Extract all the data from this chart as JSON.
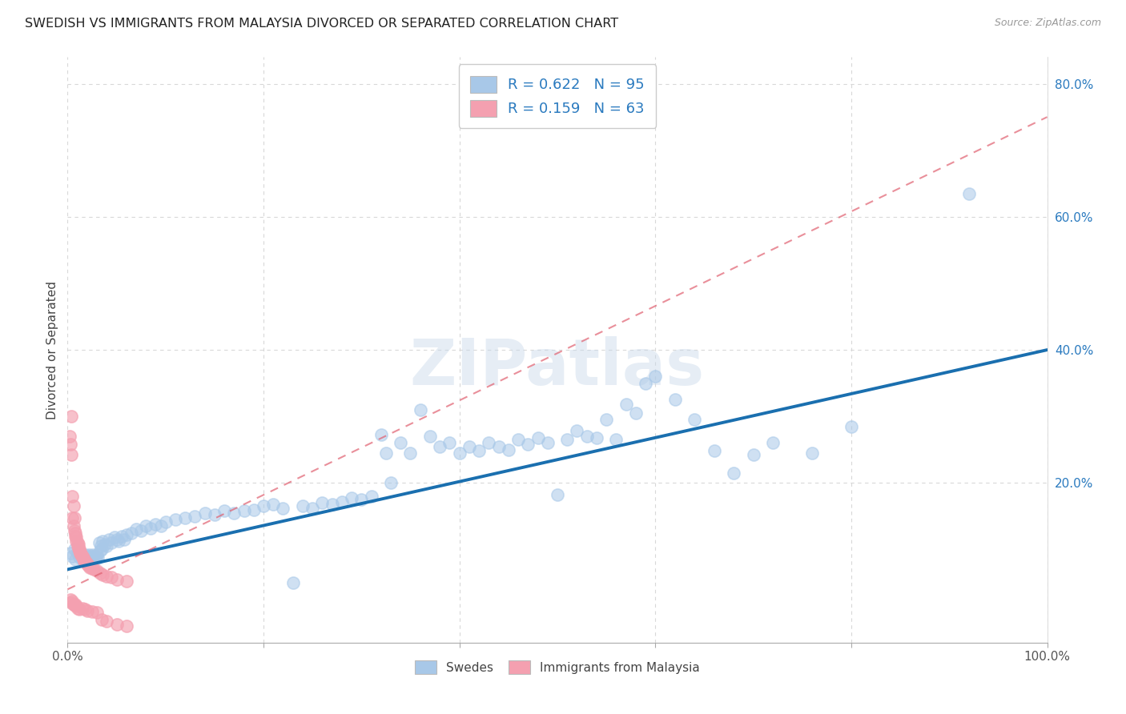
{
  "title": "SWEDISH VS IMMIGRANTS FROM MALAYSIA DIVORCED OR SEPARATED CORRELATION CHART",
  "source": "Source: ZipAtlas.com",
  "ylabel": "Divorced or Separated",
  "xlim": [
    0.0,
    1.0
  ],
  "ylim": [
    -0.04,
    0.84
  ],
  "xticks": [
    0.0,
    0.2,
    0.4,
    0.6,
    0.8,
    1.0
  ],
  "xtick_labels": [
    "0.0%",
    "",
    "",
    "",
    "",
    "100.0%"
  ],
  "ytick_labels": [
    "20.0%",
    "40.0%",
    "60.0%",
    "80.0%"
  ],
  "yticks": [
    0.2,
    0.4,
    0.6,
    0.8
  ],
  "watermark": "ZIPatlas",
  "legend_blue_r": "R = 0.622",
  "legend_blue_n": "N = 95",
  "legend_pink_r": "R = 0.159",
  "legend_pink_n": "N = 63",
  "blue_color": "#a8c8e8",
  "pink_color": "#f4a0b0",
  "line_blue": "#1a6faf",
  "line_pink": "#e06070",
  "tick_label_color": "#2a7abf",
  "blue_scatter": [
    [
      0.003,
      0.095
    ],
    [
      0.005,
      0.09
    ],
    [
      0.007,
      0.1
    ],
    [
      0.008,
      0.085
    ],
    [
      0.01,
      0.095
    ],
    [
      0.012,
      0.088
    ],
    [
      0.013,
      0.092
    ],
    [
      0.015,
      0.085
    ],
    [
      0.016,
      0.09
    ],
    [
      0.017,
      0.088
    ],
    [
      0.018,
      0.092
    ],
    [
      0.019,
      0.086
    ],
    [
      0.02,
      0.09
    ],
    [
      0.021,
      0.088
    ],
    [
      0.022,
      0.092
    ],
    [
      0.023,
      0.087
    ],
    [
      0.024,
      0.09
    ],
    [
      0.025,
      0.088
    ],
    [
      0.026,
      0.092
    ],
    [
      0.027,
      0.087
    ],
    [
      0.028,
      0.09
    ],
    [
      0.029,
      0.088
    ],
    [
      0.03,
      0.092
    ],
    [
      0.031,
      0.087
    ],
    [
      0.032,
      0.11
    ],
    [
      0.033,
      0.098
    ],
    [
      0.034,
      0.105
    ],
    [
      0.035,
      0.1
    ],
    [
      0.036,
      0.112
    ],
    [
      0.038,
      0.108
    ],
    [
      0.04,
      0.105
    ],
    [
      0.042,
      0.115
    ],
    [
      0.045,
      0.11
    ],
    [
      0.048,
      0.118
    ],
    [
      0.05,
      0.115
    ],
    [
      0.052,
      0.112
    ],
    [
      0.055,
      0.12
    ],
    [
      0.058,
      0.115
    ],
    [
      0.06,
      0.122
    ],
    [
      0.065,
      0.125
    ],
    [
      0.07,
      0.13
    ],
    [
      0.075,
      0.128
    ],
    [
      0.08,
      0.135
    ],
    [
      0.085,
      0.132
    ],
    [
      0.09,
      0.138
    ],
    [
      0.095,
      0.135
    ],
    [
      0.1,
      0.142
    ],
    [
      0.11,
      0.145
    ],
    [
      0.12,
      0.148
    ],
    [
      0.13,
      0.15
    ],
    [
      0.14,
      0.155
    ],
    [
      0.15,
      0.152
    ],
    [
      0.16,
      0.158
    ],
    [
      0.17,
      0.155
    ],
    [
      0.18,
      0.158
    ],
    [
      0.19,
      0.16
    ],
    [
      0.2,
      0.165
    ],
    [
      0.21,
      0.168
    ],
    [
      0.22,
      0.162
    ],
    [
      0.23,
      0.05
    ],
    [
      0.24,
      0.165
    ],
    [
      0.25,
      0.162
    ],
    [
      0.26,
      0.17
    ],
    [
      0.27,
      0.168
    ],
    [
      0.28,
      0.172
    ],
    [
      0.29,
      0.178
    ],
    [
      0.3,
      0.175
    ],
    [
      0.31,
      0.18
    ],
    [
      0.32,
      0.272
    ],
    [
      0.325,
      0.245
    ],
    [
      0.33,
      0.2
    ],
    [
      0.34,
      0.26
    ],
    [
      0.35,
      0.245
    ],
    [
      0.36,
      0.31
    ],
    [
      0.37,
      0.27
    ],
    [
      0.38,
      0.255
    ],
    [
      0.39,
      0.26
    ],
    [
      0.4,
      0.245
    ],
    [
      0.41,
      0.255
    ],
    [
      0.42,
      0.248
    ],
    [
      0.43,
      0.26
    ],
    [
      0.44,
      0.255
    ],
    [
      0.45,
      0.25
    ],
    [
      0.46,
      0.265
    ],
    [
      0.47,
      0.258
    ],
    [
      0.48,
      0.268
    ],
    [
      0.49,
      0.26
    ],
    [
      0.5,
      0.182
    ],
    [
      0.51,
      0.265
    ],
    [
      0.52,
      0.278
    ],
    [
      0.53,
      0.27
    ],
    [
      0.54,
      0.268
    ],
    [
      0.55,
      0.295
    ],
    [
      0.56,
      0.265
    ],
    [
      0.57,
      0.318
    ],
    [
      0.58,
      0.305
    ],
    [
      0.59,
      0.35
    ],
    [
      0.6,
      0.36
    ],
    [
      0.62,
      0.325
    ],
    [
      0.64,
      0.295
    ],
    [
      0.66,
      0.248
    ],
    [
      0.68,
      0.215
    ],
    [
      0.7,
      0.242
    ],
    [
      0.72,
      0.26
    ],
    [
      0.76,
      0.245
    ],
    [
      0.8,
      0.285
    ],
    [
      0.92,
      0.635
    ]
  ],
  "pink_scatter": [
    [
      0.002,
      0.27
    ],
    [
      0.003,
      0.258
    ],
    [
      0.004,
      0.242
    ],
    [
      0.004,
      0.3
    ],
    [
      0.005,
      0.18
    ],
    [
      0.005,
      0.148
    ],
    [
      0.006,
      0.165
    ],
    [
      0.006,
      0.135
    ],
    [
      0.007,
      0.148
    ],
    [
      0.007,
      0.128
    ],
    [
      0.008,
      0.125
    ],
    [
      0.008,
      0.12
    ],
    [
      0.009,
      0.118
    ],
    [
      0.009,
      0.112
    ],
    [
      0.01,
      0.11
    ],
    [
      0.01,
      0.105
    ],
    [
      0.011,
      0.108
    ],
    [
      0.011,
      0.102
    ],
    [
      0.012,
      0.1
    ],
    [
      0.012,
      0.098
    ],
    [
      0.013,
      0.096
    ],
    [
      0.013,
      0.095
    ],
    [
      0.014,
      0.093
    ],
    [
      0.014,
      0.092
    ],
    [
      0.015,
      0.09
    ],
    [
      0.015,
      0.088
    ],
    [
      0.016,
      0.087
    ],
    [
      0.016,
      0.086
    ],
    [
      0.017,
      0.085
    ],
    [
      0.017,
      0.083
    ],
    [
      0.018,
      0.082
    ],
    [
      0.019,
      0.08
    ],
    [
      0.02,
      0.078
    ],
    [
      0.021,
      0.076
    ],
    [
      0.022,
      0.075
    ],
    [
      0.023,
      0.073
    ],
    [
      0.025,
      0.072
    ],
    [
      0.027,
      0.07
    ],
    [
      0.03,
      0.068
    ],
    [
      0.033,
      0.065
    ],
    [
      0.036,
      0.062
    ],
    [
      0.04,
      0.06
    ],
    [
      0.045,
      0.058
    ],
    [
      0.05,
      0.055
    ],
    [
      0.06,
      0.052
    ],
    [
      0.003,
      0.025
    ],
    [
      0.004,
      0.02
    ],
    [
      0.005,
      0.022
    ],
    [
      0.006,
      0.018
    ],
    [
      0.007,
      0.016
    ],
    [
      0.008,
      0.018
    ],
    [
      0.009,
      0.015
    ],
    [
      0.01,
      0.012
    ],
    [
      0.012,
      0.01
    ],
    [
      0.015,
      0.012
    ],
    [
      0.018,
      0.01
    ],
    [
      0.02,
      0.008
    ],
    [
      0.025,
      0.007
    ],
    [
      0.03,
      0.005
    ],
    [
      0.035,
      -0.005
    ],
    [
      0.04,
      -0.008
    ],
    [
      0.05,
      -0.012
    ],
    [
      0.06,
      -0.015
    ]
  ],
  "blue_line": {
    "x0": 0.0,
    "y0": 0.07,
    "x1": 1.0,
    "y1": 0.4
  },
  "pink_line": {
    "x0": 0.0,
    "y0": 0.04,
    "x1": 1.0,
    "y1": 0.75
  },
  "legend_labels": [
    "Swedes",
    "Immigrants from Malaysia"
  ],
  "background_color": "#ffffff",
  "grid_color": "#d8d8d8"
}
